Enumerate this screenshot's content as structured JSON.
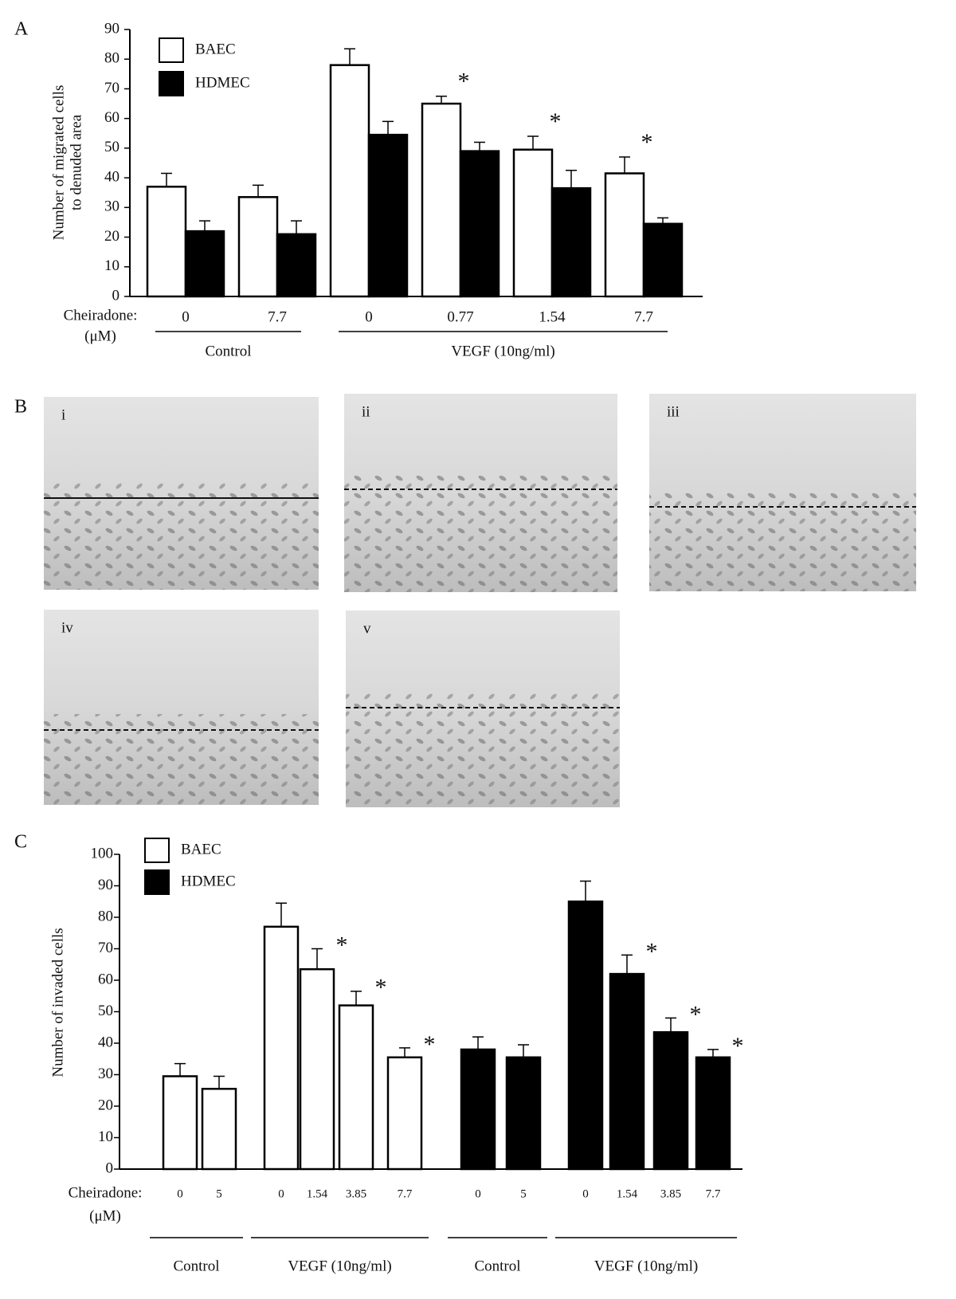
{
  "panels": {
    "a": "A",
    "b": "B",
    "c": "C"
  },
  "images": [
    "i",
    "ii",
    "iii",
    "iv",
    "v"
  ],
  "chart_data": [
    {
      "type": "bar",
      "ylabel": [
        "Number of migrated cells",
        "to denuded area"
      ],
      "ylim": [
        0,
        90
      ],
      "yticks": [
        0,
        10,
        20,
        30,
        40,
        50,
        60,
        70,
        80,
        90
      ],
      "x_row_label": [
        "Cheiradone:",
        "(μM)"
      ],
      "categories": [
        "0",
        "7.7",
        "0",
        "0.77",
        "1.54",
        "7.7"
      ],
      "groups": [
        {
          "label": "Control",
          "from": 0,
          "to": 1
        },
        {
          "label": "VEGF (10ng/ml)",
          "from": 2,
          "to": 5
        }
      ],
      "series": [
        {
          "name": "BAEC",
          "color": "#ffffff",
          "values": [
            37,
            33.5,
            78,
            65,
            49.5,
            41.5
          ],
          "errors": [
            4.5,
            4,
            5.5,
            2.5,
            4.5,
            5.5
          ]
        },
        {
          "name": "HDMEC",
          "color": "#000000",
          "values": [
            22,
            21,
            54.5,
            49,
            36.5,
            24.5
          ],
          "errors": [
            3.5,
            4.5,
            4.5,
            3,
            6,
            2
          ]
        }
      ],
      "annotations": [
        {
          "text": "*",
          "category": 3
        },
        {
          "text": "*",
          "category": 4
        },
        {
          "text": "*",
          "category": 5
        }
      ]
    },
    {
      "type": "bar",
      "ylabel": [
        "Number of invaded cells"
      ],
      "ylim": [
        0,
        100
      ],
      "yticks": [
        0,
        10,
        20,
        30,
        40,
        50,
        60,
        70,
        80,
        90,
        100
      ],
      "x_row_label": [
        "Cheiradone:",
        "(μM)"
      ],
      "categories": [
        "0",
        "5",
        "0",
        "1.54",
        "3.85",
        "7.7",
        "0",
        "5",
        "0",
        "1.54",
        "3.85",
        "7.7"
      ],
      "groups": [
        {
          "label": "Control",
          "from": 0,
          "to": 1
        },
        {
          "label": "VEGF (10ng/ml)",
          "from": 2,
          "to": 5
        },
        {
          "label": "Control",
          "from": 6,
          "to": 7
        },
        {
          "label": "VEGF (10ng/ml)",
          "from": 8,
          "to": 11
        }
      ],
      "series": [
        {
          "name": "BAEC",
          "color": "#ffffff",
          "values": [
            29.5,
            25.5,
            77,
            63.5,
            52,
            35.5,
            null,
            null,
            null,
            null,
            null,
            null
          ],
          "errors": [
            4,
            4,
            7.5,
            6.5,
            4.5,
            3,
            null,
            null,
            null,
            null,
            null,
            null
          ]
        },
        {
          "name": "HDMEC",
          "color": "#000000",
          "values": [
            null,
            null,
            null,
            null,
            null,
            null,
            38,
            35.5,
            85,
            62,
            43.5,
            35.5
          ],
          "errors": [
            null,
            null,
            null,
            null,
            null,
            null,
            4,
            4,
            6.5,
            6,
            4.5,
            2.5
          ]
        }
      ],
      "annotations": [
        {
          "text": "*",
          "category": 3
        },
        {
          "text": "*",
          "category": 4
        },
        {
          "text": "*",
          "category": 5
        },
        {
          "text": "*",
          "category": 9
        },
        {
          "text": "*",
          "category": 10
        },
        {
          "text": "*",
          "category": 11
        }
      ]
    }
  ]
}
